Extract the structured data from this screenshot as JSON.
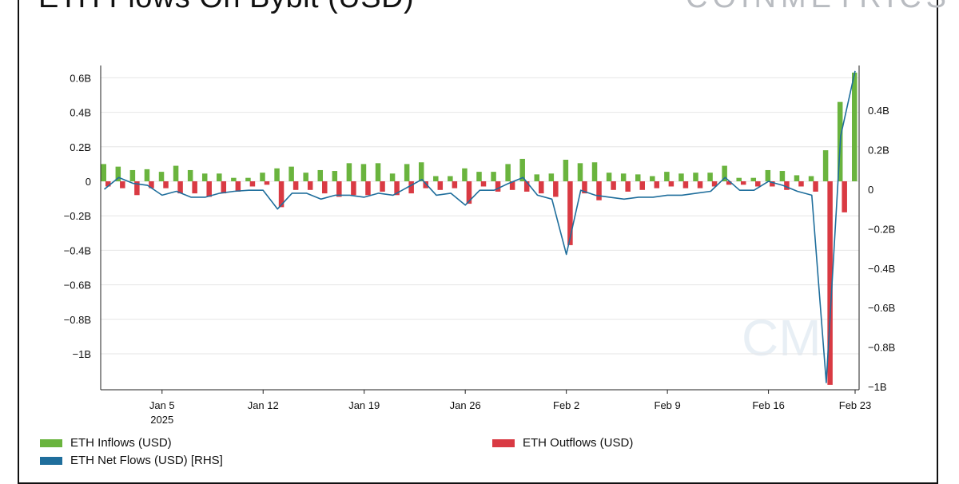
{
  "title": "ETH Flows On Bybit (USD)",
  "brand": "COINMETRICS",
  "watermark": "CM",
  "colors": {
    "inflows": "#6ab43e",
    "outflows": "#d93a43",
    "net": "#1f6e9c",
    "grid": "#e6e6e6"
  },
  "legend": {
    "inflows": "ETH Inflows (USD)",
    "outflows": "ETH Outflows (USD)",
    "net": "ETH Net Flows (USD) [RHS]"
  },
  "chart_data": {
    "type": "bar",
    "title": "ETH Flows On Bybit (USD)",
    "x_tick_labels": [
      "Jan 5",
      "Jan 12",
      "Jan 19",
      "Jan 26",
      "Feb 2",
      "Feb 9",
      "Feb 16",
      "Feb 23"
    ],
    "x_tick_sublabel": "2025",
    "left_axis": {
      "ticks": [
        0.6,
        0.4,
        0.2,
        0,
        -0.2,
        -0.4,
        -0.6,
        -0.8,
        -1
      ],
      "tick_labels": [
        "0.6B",
        "0.4B",
        "0.2B",
        "0",
        "−0.2B",
        "−0.4B",
        "−0.6B",
        "−0.8B",
        "−1B"
      ],
      "ylim": [
        -1.18,
        0.63
      ]
    },
    "right_axis": {
      "ticks": [
        0.4,
        0.2,
        0,
        -0.2,
        -0.4,
        -0.6,
        -0.8,
        -1
      ],
      "tick_labels": [
        "0.4B",
        "0.2B",
        "0",
        "−0.2B",
        "−0.4B",
        "−0.6B",
        "−0.8B",
        "−1B"
      ],
      "ylim": [
        -1.0,
        0.6
      ]
    },
    "start_date": "2025-01-01",
    "grid": true,
    "series": [
      {
        "name": "ETH Inflows (USD)",
        "type": "bar",
        "values": [
          0.1,
          0.085,
          0.065,
          0.07,
          0.055,
          0.09,
          0.065,
          0.045,
          0.045,
          0.02,
          0.02,
          0.05,
          0.075,
          0.085,
          0.05,
          0.065,
          0.06,
          0.105,
          0.1,
          0.105,
          0.045,
          0.1,
          0.11,
          0.03,
          0.03,
          0.075,
          0.055,
          0.055,
          0.1,
          0.13,
          0.04,
          0.045,
          0.125,
          0.105,
          0.11,
          0.05,
          0.045,
          0.04,
          0.03,
          0.055,
          0.045,
          0.05,
          0.05,
          0.09,
          0.02,
          0.02,
          0.065,
          0.06,
          0.035,
          0.03,
          0.18,
          0.46,
          0.63
        ]
      },
      {
        "name": "ETH Outflows (USD)",
        "type": "bar",
        "values": [
          -0.03,
          -0.04,
          -0.08,
          -0.04,
          -0.04,
          -0.07,
          -0.07,
          -0.09,
          -0.07,
          -0.06,
          -0.03,
          -0.02,
          -0.15,
          -0.05,
          -0.05,
          -0.07,
          -0.09,
          -0.08,
          -0.08,
          -0.06,
          -0.08,
          -0.07,
          -0.04,
          -0.05,
          -0.04,
          -0.13,
          -0.03,
          -0.06,
          -0.05,
          -0.06,
          -0.07,
          -0.09,
          -0.37,
          -0.07,
          -0.11,
          -0.05,
          -0.06,
          -0.05,
          -0.04,
          -0.03,
          -0.04,
          -0.04,
          -0.03,
          -0.02,
          -0.02,
          -0.03,
          -0.03,
          -0.05,
          -0.03,
          -0.06,
          -1.18,
          -0.18,
          0
        ]
      },
      {
        "name": "ETH Net Flows (USD) [RHS]",
        "type": "line",
        "axis": "right",
        "values": [
          0.0,
          0.06,
          0.03,
          0.02,
          -0.03,
          -0.01,
          -0.04,
          -0.04,
          -0.02,
          -0.01,
          -0.005,
          -0.005,
          -0.1,
          -0.02,
          -0.02,
          -0.05,
          -0.03,
          -0.03,
          -0.04,
          -0.02,
          -0.03,
          0.01,
          0.05,
          -0.03,
          -0.02,
          -0.08,
          -0.005,
          -0.005,
          0.03,
          0.06,
          -0.03,
          -0.05,
          -0.33,
          -0.005,
          -0.03,
          -0.04,
          -0.05,
          -0.04,
          -0.04,
          -0.03,
          -0.03,
          -0.02,
          -0.01,
          0.06,
          -0.005,
          -0.005,
          0.04,
          0.02,
          -0.01,
          -0.03,
          -0.98,
          0.27,
          0.6
        ]
      }
    ]
  }
}
